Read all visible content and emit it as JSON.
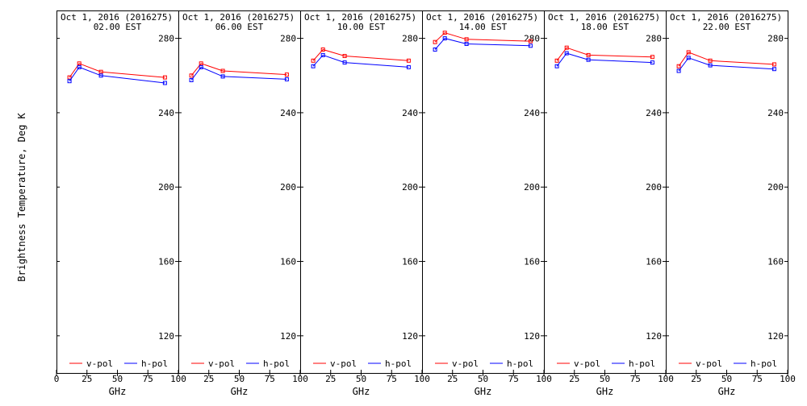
{
  "figure": {
    "ylabel": "Brightness Temperature, Deg K",
    "xlabel": "GHz"
  },
  "legend": {
    "v_label": "v-pol",
    "h_label": "h-pol",
    "v_color": "#ff0000",
    "h_color": "#0000ff"
  },
  "chart_data": {
    "type": "line",
    "x": [
      10.65,
      18.7,
      36.5,
      89
    ],
    "xlim": [
      0,
      100
    ],
    "ylim": [
      100,
      295
    ],
    "xticks": [
      0,
      25,
      50,
      75,
      100
    ],
    "yticks": [
      120,
      160,
      200,
      240,
      280
    ],
    "xlabel": "GHz",
    "ylabel": "Brightness Temperature, Deg K",
    "panels": [
      {
        "date": "Oct  1, 2016 (2016275)",
        "time": "02.00 EST",
        "series": [
          {
            "name": "v-pol",
            "values": [
              259,
              266.5,
              262,
              259
            ]
          },
          {
            "name": "h-pol",
            "values": [
              257,
              264.5,
              260,
              256
            ]
          }
        ]
      },
      {
        "date": "Oct  1, 2016 (2016275)",
        "time": "06.00 EST",
        "series": [
          {
            "name": "v-pol",
            "values": [
              260,
              266.5,
              262.5,
              260.5
            ]
          },
          {
            "name": "h-pol",
            "values": [
              257.5,
              264.5,
              259.5,
              258
            ]
          }
        ]
      },
      {
        "date": "Oct  1, 2016 (2016275)",
        "time": "10.00 EST",
        "series": [
          {
            "name": "v-pol",
            "values": [
              268,
              274,
              270.5,
              268
            ]
          },
          {
            "name": "h-pol",
            "values": [
              265,
              271,
              267,
              264.5
            ]
          }
        ]
      },
      {
        "date": "Oct  1, 2016 (2016275)",
        "time": "14.00 EST",
        "series": [
          {
            "name": "v-pol",
            "values": [
              278,
              283,
              279.5,
              278.5
            ]
          },
          {
            "name": "h-pol",
            "values": [
              274,
              280,
              277,
              276
            ]
          }
        ]
      },
      {
        "date": "Oct  1, 2016 (2016275)",
        "time": "18.00 EST",
        "series": [
          {
            "name": "v-pol",
            "values": [
              268,
              275,
              271,
              270
            ]
          },
          {
            "name": "h-pol",
            "values": [
              265,
              272,
              268.5,
              267
            ]
          }
        ]
      },
      {
        "date": "Oct  1, 2016 (2016275)",
        "time": "22.00 EST",
        "series": [
          {
            "name": "v-pol",
            "values": [
              265,
              272.5,
              268,
              266
            ]
          },
          {
            "name": "h-pol",
            "values": [
              262.5,
              269.5,
              265.5,
              263.5
            ]
          }
        ]
      }
    ]
  }
}
